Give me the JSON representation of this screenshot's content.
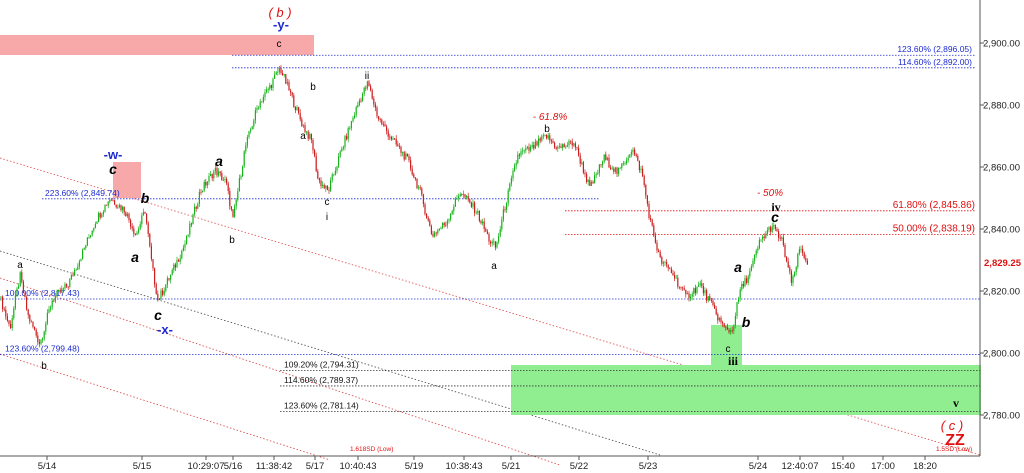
{
  "chart_data": {
    "type": "line",
    "title": "",
    "xlabel": "",
    "ylabel": "",
    "ylim": [
      2770,
      2915
    ],
    "y_ticks": [
      2780,
      2800,
      2820,
      2840,
      2860,
      2880,
      2900
    ],
    "y_tick_labels": [
      "2,780.00",
      "2,800.00",
      "2,820.00",
      "2,840.00",
      "2,860.00",
      "2,880.00",
      "2,900.00"
    ],
    "x_ticks": [
      "5/14",
      "5/15",
      "10:29:07",
      "5/16",
      "11:38:42",
      "5/17",
      "10:40:43",
      "5/19",
      "10:38:43",
      "5/21",
      "5/22",
      "5/23",
      "5/24",
      "12:40:07",
      "15:40",
      "17:00",
      "18:20"
    ],
    "grid": false,
    "legend": "none",
    "colors": {
      "up": "#16b21a",
      "down": "#cc1d1d",
      "level_blue": "#1c2bd0",
      "level_red": "#e01010",
      "zone_red": "#f7a8a8",
      "zone_green": "#90ee90"
    },
    "current_price": {
      "value": 2829.25,
      "label": "2,829.25"
    },
    "price_path": [
      {
        "x": 0,
        "y": 2818
      },
      {
        "x": 10,
        "y": 2808
      },
      {
        "x": 20,
        "y": 2825
      },
      {
        "x": 28,
        "y": 2812
      },
      {
        "x": 40,
        "y": 2803
      },
      {
        "x": 52,
        "y": 2817
      },
      {
        "x": 68,
        "y": 2822
      },
      {
        "x": 82,
        "y": 2832
      },
      {
        "x": 96,
        "y": 2843
      },
      {
        "x": 110,
        "y": 2850
      },
      {
        "x": 125,
        "y": 2846
      },
      {
        "x": 136,
        "y": 2838
      },
      {
        "x": 145,
        "y": 2846
      },
      {
        "x": 152,
        "y": 2828
      },
      {
        "x": 158,
        "y": 2817
      },
      {
        "x": 172,
        "y": 2826
      },
      {
        "x": 186,
        "y": 2836
      },
      {
        "x": 200,
        "y": 2852
      },
      {
        "x": 215,
        "y": 2859
      },
      {
        "x": 226,
        "y": 2855
      },
      {
        "x": 233,
        "y": 2843
      },
      {
        "x": 245,
        "y": 2866
      },
      {
        "x": 258,
        "y": 2880
      },
      {
        "x": 270,
        "y": 2886
      },
      {
        "x": 280,
        "y": 2892
      },
      {
        "x": 290,
        "y": 2884
      },
      {
        "x": 302,
        "y": 2874
      },
      {
        "x": 312,
        "y": 2868
      },
      {
        "x": 318,
        "y": 2856
      },
      {
        "x": 328,
        "y": 2852
      },
      {
        "x": 340,
        "y": 2864
      },
      {
        "x": 352,
        "y": 2875
      },
      {
        "x": 360,
        "y": 2882
      },
      {
        "x": 368,
        "y": 2887
      },
      {
        "x": 378,
        "y": 2876
      },
      {
        "x": 392,
        "y": 2869
      },
      {
        "x": 408,
        "y": 2862
      },
      {
        "x": 420,
        "y": 2852
      },
      {
        "x": 432,
        "y": 2838
      },
      {
        "x": 446,
        "y": 2842
      },
      {
        "x": 460,
        "y": 2852
      },
      {
        "x": 476,
        "y": 2846
      },
      {
        "x": 490,
        "y": 2836
      },
      {
        "x": 496,
        "y": 2834
      },
      {
        "x": 504,
        "y": 2846
      },
      {
        "x": 518,
        "y": 2864
      },
      {
        "x": 532,
        "y": 2866
      },
      {
        "x": 546,
        "y": 2870
      },
      {
        "x": 558,
        "y": 2866
      },
      {
        "x": 574,
        "y": 2868
      },
      {
        "x": 590,
        "y": 2853
      },
      {
        "x": 604,
        "y": 2863
      },
      {
        "x": 618,
        "y": 2858
      },
      {
        "x": 632,
        "y": 2866
      },
      {
        "x": 642,
        "y": 2858
      },
      {
        "x": 650,
        "y": 2843
      },
      {
        "x": 660,
        "y": 2830
      },
      {
        "x": 672,
        "y": 2826
      },
      {
        "x": 686,
        "y": 2818
      },
      {
        "x": 700,
        "y": 2822
      },
      {
        "x": 714,
        "y": 2814
      },
      {
        "x": 724,
        "y": 2808
      },
      {
        "x": 732,
        "y": 2807
      },
      {
        "x": 740,
        "y": 2820
      },
      {
        "x": 750,
        "y": 2826
      },
      {
        "x": 760,
        "y": 2836
      },
      {
        "x": 772,
        "y": 2841
      },
      {
        "x": 782,
        "y": 2836
      },
      {
        "x": 792,
        "y": 2822
      },
      {
        "x": 800,
        "y": 2834
      },
      {
        "x": 808,
        "y": 2829
      }
    ],
    "levels": [
      {
        "label": "123.60% (2,896.05)",
        "value": 2896.05,
        "color": "blue"
      },
      {
        "label": "114.60% (2,892.00)",
        "value": 2892.0,
        "color": "blue"
      },
      {
        "label": "223.60% (2,849.74)",
        "value": 2849.74,
        "color": "blue"
      },
      {
        "label": "61.80% (2,845.86)",
        "value": 2845.86,
        "color": "red"
      },
      {
        "label": "50.00% (2,838.19)",
        "value": 2838.19,
        "color": "red"
      },
      {
        "label": "100.00% (2,817.43)",
        "value": 2817.43,
        "color": "blue"
      },
      {
        "label": "123.60% (2,799.48)",
        "value": 2799.48,
        "color": "blue"
      },
      {
        "label": "109.20% (2,794.31)",
        "value": 2794.31,
        "color": "black"
      },
      {
        "label": "114.60% (2,789.37)",
        "value": 2789.37,
        "color": "black"
      },
      {
        "label": "123.60% (2,781.14)",
        "value": 2781.14,
        "color": "black"
      }
    ],
    "sd_labels": [
      "1.618SD (Low)",
      "1.5SD (Low)"
    ],
    "annotations": [
      {
        "text": "( b )",
        "style": "red-it"
      },
      {
        "text": "-y-",
        "style": "blue"
      },
      {
        "text": "c",
        "style": "sm"
      },
      {
        "text": "-w-",
        "style": "blue"
      },
      {
        "text": "c",
        "style": "bi"
      },
      {
        "text": "b",
        "style": "bi"
      },
      {
        "text": "a",
        "style": "bi"
      },
      {
        "text": "c",
        "style": "bi"
      },
      {
        "text": "-x-",
        "style": "blue"
      },
      {
        "text": "a",
        "style": "sm"
      },
      {
        "text": "b",
        "style": "sm"
      },
      {
        "text": "a",
        "style": "bi"
      },
      {
        "text": "b",
        "style": "sm"
      },
      {
        "text": "b",
        "style": "sm"
      },
      {
        "text": "a",
        "style": "sm"
      },
      {
        "text": "c",
        "style": "sm"
      },
      {
        "text": "i",
        "style": "sm"
      },
      {
        "text": "ii",
        "style": "sm"
      },
      {
        "text": "a",
        "style": "sm"
      },
      {
        "text": "- 61.8%",
        "style": "pct"
      },
      {
        "text": "b",
        "style": "sm"
      },
      {
        "text": "- 50%",
        "style": "pct"
      },
      {
        "text": "iv",
        "style": "roman"
      },
      {
        "text": "c",
        "style": "bi"
      },
      {
        "text": "a",
        "style": "bi"
      },
      {
        "text": "b",
        "style": "bi"
      },
      {
        "text": "c",
        "style": "sm"
      },
      {
        "text": "iii",
        "style": "roman"
      },
      {
        "text": "v",
        "style": "roman"
      },
      {
        "text": "( c )",
        "style": "red-it"
      },
      {
        "text": "ZZ",
        "style": "red-b"
      }
    ]
  }
}
